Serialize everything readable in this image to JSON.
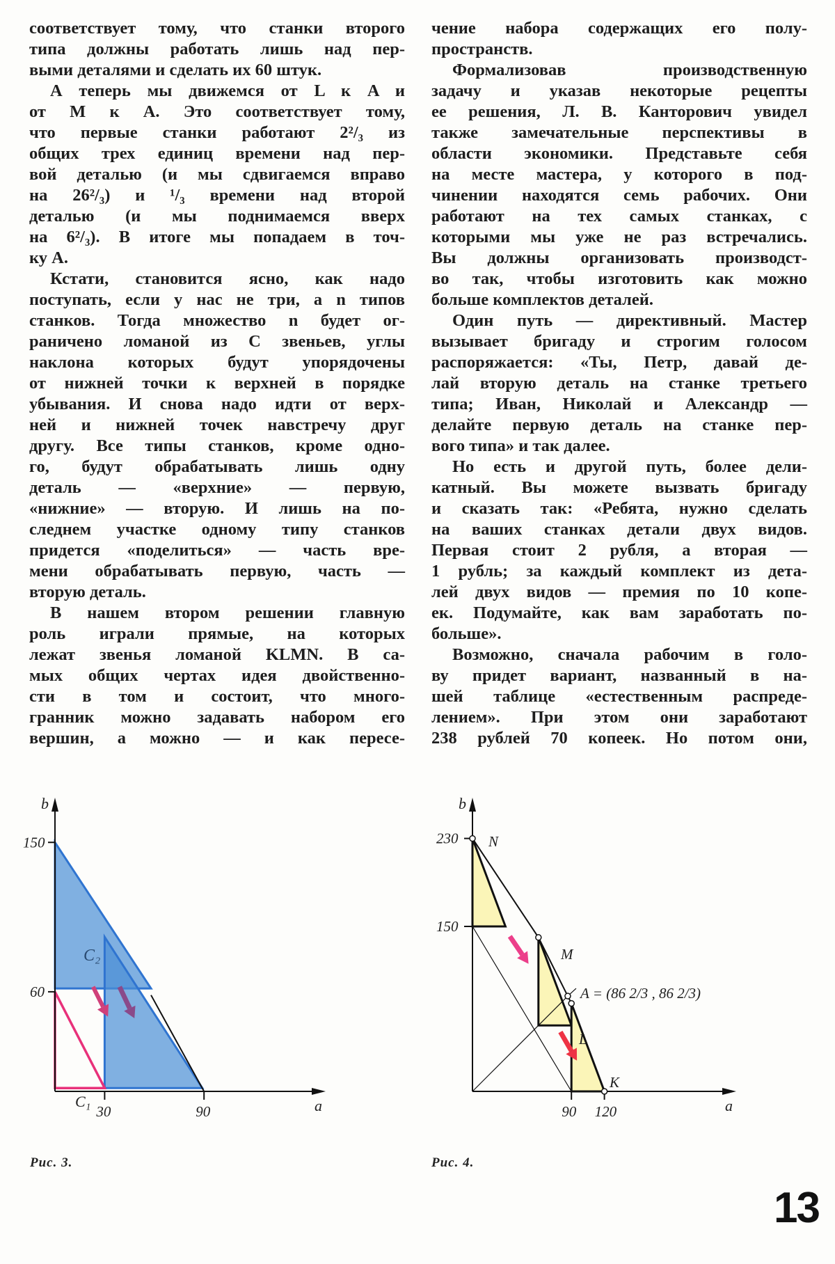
{
  "columns": {
    "left": [
      {
        "t": "соответствует тому, что станки второго"
      },
      {
        "t": "типа должны работать лишь над пер-"
      },
      {
        "t": "выми деталями и сделать их 60 штук.",
        "last": true
      },
      {
        "t": "А теперь мы движемся от L к A и",
        "ind": true
      },
      {
        "t": "от M к A. Это соответствует тому,"
      },
      {
        "t": "что первые станки работают 2²/₃ из"
      },
      {
        "t": "общих трех единиц времени над пер-"
      },
      {
        "t": "вой деталью (и мы сдвигаемся вправо"
      },
      {
        "t": "на 26²/₃) и ¹/₃ времени над второй"
      },
      {
        "t": "деталью (и мы поднимаемся вверх"
      },
      {
        "t": "на 6²/₃). В итоге мы попадаем в точ-"
      },
      {
        "t": "ку A.",
        "last": true
      },
      {
        "t": "Кстати, становится ясно, как надо",
        "ind": true
      },
      {
        "t": "поступать, если у нас не три, а n типов"
      },
      {
        "t": "станков. Тогда множество n будет ог-"
      },
      {
        "t": "раничено ломаной из C звеньев, углы"
      },
      {
        "t": "наклона которых будут упорядочены"
      },
      {
        "t": "от нижней точки к верхней в порядке"
      },
      {
        "t": "убывания. И снова надо идти от верх-"
      },
      {
        "t": "ней и нижней точек навстречу друг"
      },
      {
        "t": "другу. Все типы станков, кроме одно-"
      },
      {
        "t": "го, будут обрабатывать лишь одну"
      },
      {
        "t": "деталь — «верхние» — первую,"
      },
      {
        "t": "«нижние» — вторую. И лишь на по-"
      },
      {
        "t": "следнем участке одному типу станков"
      },
      {
        "t": "придется «поделиться» — часть вре-"
      },
      {
        "t": "мени обрабатывать первую, часть —"
      },
      {
        "t": "вторую деталь.",
        "last": true
      },
      {
        "t": "В нашем втором решении главную",
        "ind": true
      },
      {
        "t": "роль играли прямые, на которых"
      },
      {
        "t": "лежат звенья ломаной KLMN. В са-"
      },
      {
        "t": "мых общих чертах идея двойственно-"
      },
      {
        "t": "сти в том и состоит, что много-"
      },
      {
        "t": "гранник можно задавать набором его"
      },
      {
        "t": "вершин, а можно — и как пересе-"
      }
    ],
    "right": [
      {
        "t": "чение набора содержащих его полу-"
      },
      {
        "t": "пространств.",
        "last": true
      },
      {
        "t": "Формализовав производственную",
        "ind": true
      },
      {
        "t": "задачу и указав некоторые рецепты"
      },
      {
        "t": "ее решения, Л. В. Канторович увидел"
      },
      {
        "t": "также замечательные перспективы в"
      },
      {
        "t": "области экономики. Представьте себя"
      },
      {
        "t": "на месте мастера, у которого в под-"
      },
      {
        "t": "чинении находятся семь рабочих. Они"
      },
      {
        "t": "работают на тех самых станках, с"
      },
      {
        "t": "которыми мы уже не раз встречались."
      },
      {
        "t": "Вы должны организовать производст-"
      },
      {
        "t": "во так, чтобы изготовить как можно"
      },
      {
        "t": "больше комплектов деталей.",
        "last": true
      },
      {
        "t": "Один путь — директивный. Мастер",
        "ind": true
      },
      {
        "t": "вызывает бригаду и строгим голосом"
      },
      {
        "t": "распоряжается: «Ты, Петр, давай де-"
      },
      {
        "t": "лай вторую деталь на станке третьего"
      },
      {
        "t": "типа; Иван, Николай и Александр —"
      },
      {
        "t": "делайте первую деталь на станке пер-"
      },
      {
        "t": "вого типа» и так далее.",
        "last": true
      },
      {
        "t": "Но есть и другой путь, более дели-",
        "ind": true
      },
      {
        "t": "катный. Вы можете вызвать бригаду"
      },
      {
        "t": "и сказать так: «Ребята, нужно сделать"
      },
      {
        "t": "на ваших станках детали двух видов."
      },
      {
        "t": "Первая стоит 2 рубля, а вторая —"
      },
      {
        "t": "1 рубль; за каждый комплект из дета-"
      },
      {
        "t": "лей двух видов — премия по 10 копе-"
      },
      {
        "t": "ек. Подумайте, как вам заработать по-"
      },
      {
        "t": "больше».",
        "last": true
      },
      {
        "t": "Возможно, сначала рабочим в голо-",
        "ind": true
      },
      {
        "t": "ву придет вариант, названный в на-"
      },
      {
        "t": "шей таблице «естественным распреде-"
      },
      {
        "t": "лением». При этом они заработают"
      },
      {
        "t": "238 рублей 70 копеек. Но потом они,"
      }
    ]
  },
  "figures": [
    {
      "caption": "Рис. 3.",
      "xlabel": "a",
      "ylabel": "b",
      "xticks": [
        "30",
        "90"
      ],
      "xtick_values": [
        30,
        90
      ],
      "yticks": [
        "60",
        "150"
      ],
      "ytick_values": [
        60,
        150
      ],
      "region_labels": {
        "c2": "C₂",
        "c1": "C₁"
      },
      "colors": {
        "blue": "#4a8fd6",
        "pink": "#e8317a",
        "purple": "#8a4a8a"
      }
    },
    {
      "caption": "Рис. 4.",
      "xlabel": "a",
      "ylabel": "b",
      "xticks": [
        "90",
        "120"
      ],
      "xtick_values": [
        90,
        120
      ],
      "yticks": [
        "230",
        "150"
      ],
      "ytick_values": [
        230,
        150
      ],
      "points": {
        "N": "N",
        "M": "M",
        "L": "L",
        "K": "K"
      },
      "point_a_label": "A = (86 2/3 , 86 2/3)",
      "point_a_parts": {
        "prefix": "A = (",
        "whole": "86",
        "num": "2",
        "den": "3",
        "sep": ",",
        "close": ")"
      },
      "colors": {
        "yellow": "#fbf5b8",
        "pink": "#ec3f8a",
        "red": "#ee3344"
      }
    }
  ],
  "page_number": "13"
}
